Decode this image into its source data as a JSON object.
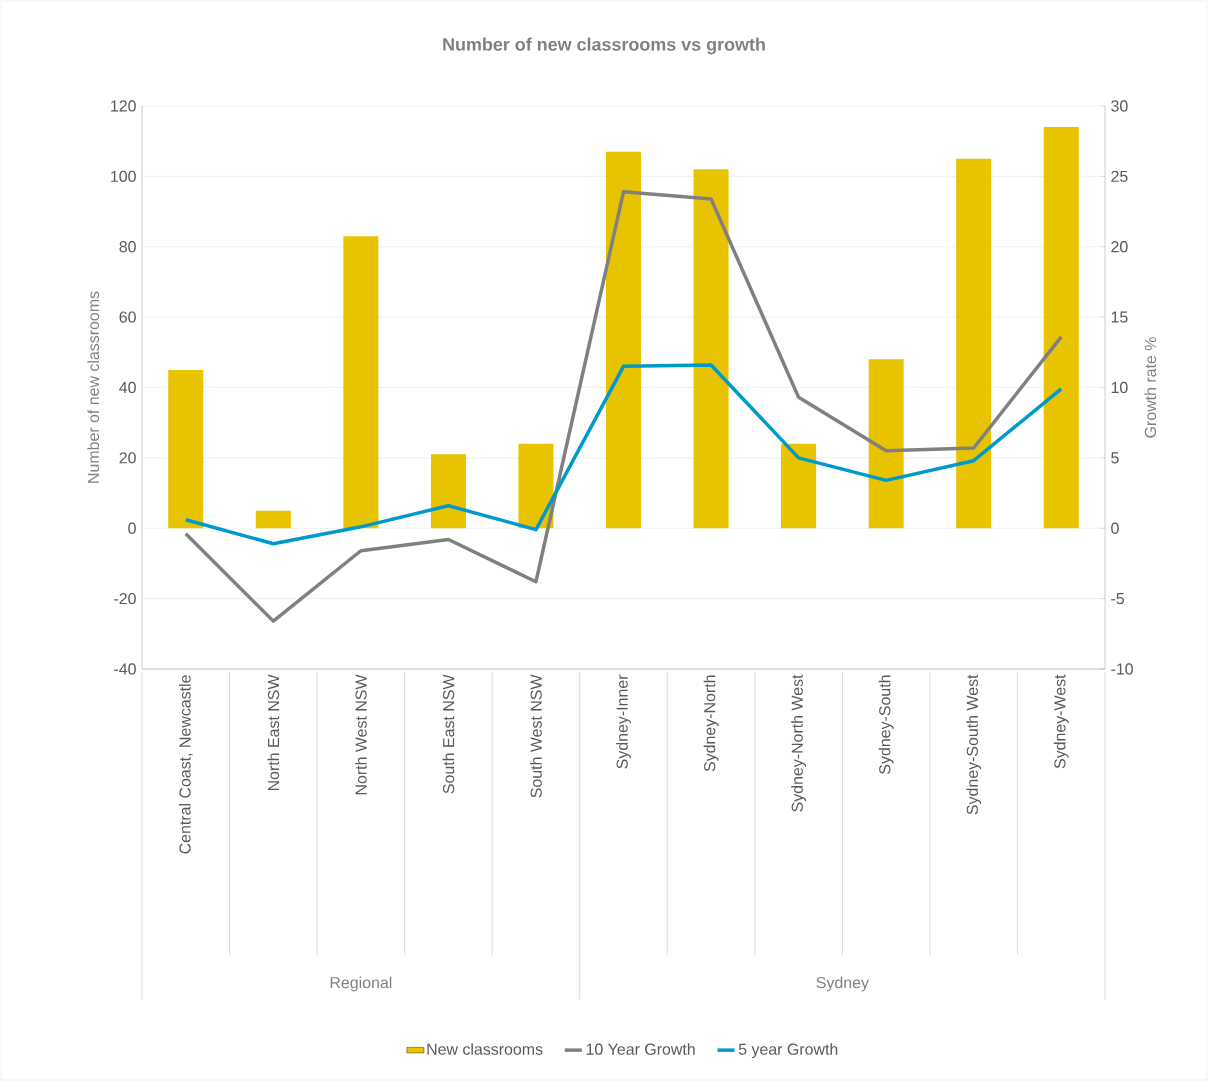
{
  "chart_data": {
    "type": "bar",
    "title": "Number of new classrooms vs growth",
    "categories": [
      "Central Coast, Newcastle",
      "North East NSW",
      "North West NSW",
      "South East NSW",
      "South West NSW",
      "Sydney-Inner",
      "Sydney-North",
      "Sydney-North West",
      "Sydney-South",
      "Sydney-South West",
      "Sydney-West"
    ],
    "series": [
      {
        "name": "New classrooms",
        "color": "#e8c300",
        "values": [
          45,
          5,
          83,
          21,
          24,
          107,
          102,
          24,
          48,
          105,
          114
        ]
      },
      {
        "name": "10 Year Growth",
        "type": "line",
        "axis": "y2",
        "color": "#808080",
        "values": [
          -0.4,
          -6.6,
          -1.6,
          -0.8,
          -3.8,
          23.9,
          23.4,
          9.3,
          5.5,
          5.7,
          13.6
        ]
      },
      {
        "name": "5 year Growth",
        "type": "line",
        "axis": "y2",
        "color": "#0099cc",
        "values": [
          0.6,
          -1.1,
          0.1,
          1.6,
          -0.1,
          11.5,
          11.6,
          5.0,
          3.4,
          4.8,
          9.9
        ]
      }
    ],
    "ylabel": "Number of new classrooms",
    "y2label": "Growth rate %",
    "ylim": [
      -40,
      120
    ],
    "yticks": [
      -40,
      -20,
      0,
      20,
      40,
      60,
      80,
      100,
      120
    ],
    "y2lim": [
      -10,
      30
    ],
    "y2ticks": [
      -10,
      -5,
      0,
      5,
      10,
      15,
      20,
      25,
      30
    ],
    "annotations": [
      "Regional",
      "Sydney"
    ],
    "grid": "y",
    "legend": "bottom"
  }
}
